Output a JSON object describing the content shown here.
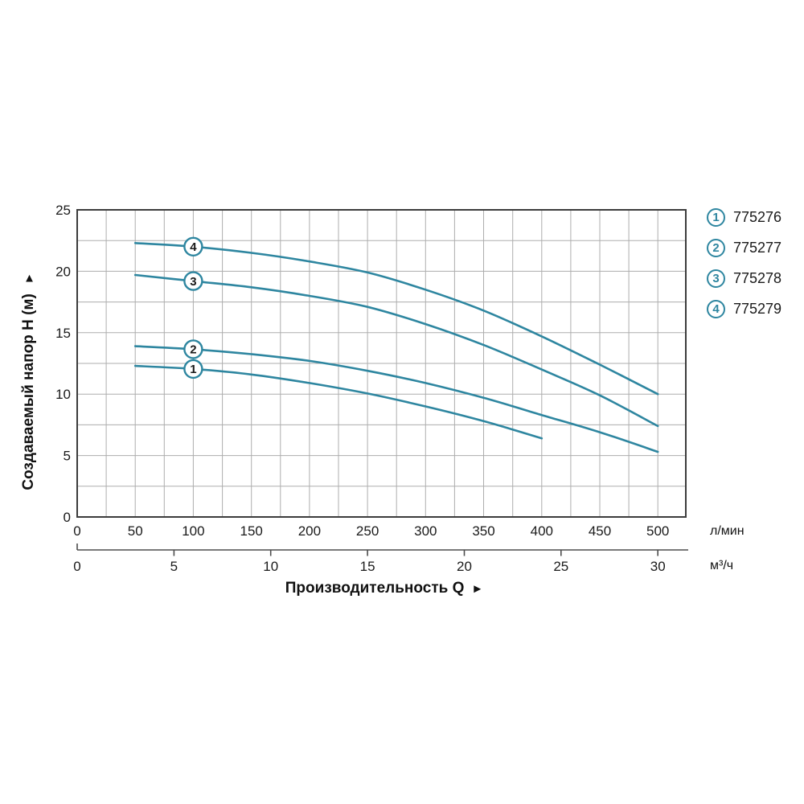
{
  "labels": {
    "y_title": "Создаваемый напор H (м)",
    "y_arrow": "▲",
    "x_title": "Производительность Q",
    "x_arrow": "►",
    "primary_unit": "л/мин",
    "secondary_unit": "м³/ч"
  },
  "legend": {
    "items": [
      {
        "marker": "1",
        "label": "775276"
      },
      {
        "marker": "2",
        "label": "775277"
      },
      {
        "marker": "3",
        "label": "775278"
      },
      {
        "marker": "4",
        "label": "775279"
      }
    ]
  },
  "colors": {
    "curve": "#2e86a0",
    "grid": "#adadad",
    "border": "#3c3c3c",
    "axis": "#4d4d4d",
    "text": "#1a1a1a",
    "background": "#ffffff"
  },
  "chart_data": {
    "type": "line",
    "title": "",
    "x_axis": {
      "label": "Производительность Q",
      "primary_unit": "л/мин",
      "primary_ticks": [
        0,
        50,
        100,
        150,
        200,
        250,
        300,
        350,
        400,
        450,
        500
      ],
      "secondary_unit": "м³/ч",
      "secondary_ticks": [
        0,
        5,
        10,
        15,
        20,
        25,
        30
      ],
      "xlim_primary_lmin": [
        0,
        524
      ],
      "lmin_per_m3h": 16.6667
    },
    "y_axis": {
      "label": "Создаваемый напор H (м)",
      "ticks": [
        0,
        5,
        10,
        15,
        20,
        25
      ],
      "ylim_m": [
        0,
        25
      ]
    },
    "grid": {
      "on": true,
      "x_step_lmin": 25,
      "y_step_m": 2.5
    },
    "legend_position": "right",
    "marker_at_x_lmin": 100,
    "series": [
      {
        "marker": "1",
        "name": "775276",
        "x_lmin": [
          50,
          100,
          150,
          200,
          250,
          300,
          350,
          400
        ],
        "h_m": [
          12.3,
          12.05,
          11.6,
          10.9,
          10.05,
          9.0,
          7.8,
          6.4
        ]
      },
      {
        "marker": "2",
        "name": "775277",
        "x_lmin": [
          50,
          100,
          150,
          200,
          250,
          300,
          350,
          400,
          450,
          500
        ],
        "h_m": [
          13.9,
          13.65,
          13.25,
          12.7,
          11.9,
          10.9,
          9.7,
          8.3,
          6.9,
          5.3
        ]
      },
      {
        "marker": "3",
        "name": "775278",
        "x_lmin": [
          50,
          100,
          150,
          200,
          250,
          300,
          350,
          400,
          450,
          500
        ],
        "h_m": [
          19.7,
          19.2,
          18.7,
          18.0,
          17.1,
          15.7,
          14.0,
          12.0,
          9.9,
          7.4
        ]
      },
      {
        "marker": "4",
        "name": "775279",
        "x_lmin": [
          50,
          100,
          150,
          200,
          250,
          300,
          350,
          400,
          450,
          500
        ],
        "h_m": [
          22.3,
          22.0,
          21.5,
          20.8,
          19.9,
          18.5,
          16.8,
          14.7,
          12.4,
          10.0
        ]
      }
    ]
  }
}
